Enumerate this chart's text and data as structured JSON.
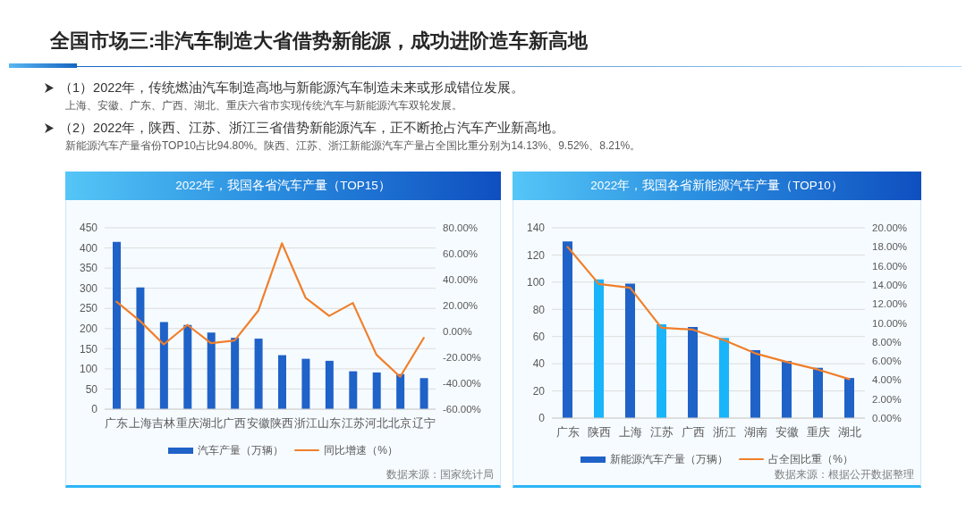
{
  "chart_data": [
    {
      "type": "other",
      "title": "全国市场三:非汽车制造大省借势新能源，成功进阶造车新高地",
      "annotations": [
        "（1）2022年，传统燃油汽车制造高地与新能源汽车制造未来或形成错位发展。",
        "上海、安徽、广东、广西、湖北、重庆六省市实现传统汽车与新能源汽车双轮发展。",
        "（2）2022年，陕西、江苏、浙江三省借势新能源汽车，正不断抢占汽车产业新高地。",
        "新能源汽车产量省份TOP10占比94.80%。陕西、江苏、浙江新能源汽车产量占全国比重分别为14.13%、9.52%、8.21%。"
      ]
    },
    {
      "type": "bar",
      "title": "2022年，我国各省汽车产量（TOP15）",
      "categories": [
        "广东",
        "上海",
        "吉林",
        "重庆",
        "湖北",
        "广西",
        "安徽",
        "陕西",
        "浙江",
        "山东",
        "江苏",
        "河北",
        "北京",
        "辽宁"
      ],
      "series": [
        {
          "name": "汽车产量（万辆）",
          "type": "bar",
          "color": "#1f62c8",
          "values": [
            415,
            302,
            216,
            209,
            190,
            177,
            175,
            134,
            125,
            120,
            94,
            91,
            87,
            77
          ]
        },
        {
          "name": "同比增速（%）",
          "type": "line",
          "axis": "y2",
          "color": "#f07f2b",
          "values": [
            23,
            8,
            -10,
            5,
            -9,
            -7,
            16,
            68,
            26,
            12,
            22,
            -18,
            -35,
            -5
          ]
        }
      ],
      "ylim": [
        0,
        450
      ],
      "yticks": [
        0,
        50,
        100,
        150,
        200,
        250,
        300,
        350,
        400,
        450
      ],
      "y2lim": [
        -60,
        80
      ],
      "y2ticks": [
        {
          "value": -60,
          "label": "-60.00%"
        },
        {
          "value": -40,
          "label": "-40.00%"
        },
        {
          "value": -20,
          "label": "-20.00%"
        },
        {
          "value": 0,
          "label": "0.00%"
        },
        {
          "value": 20,
          "label": "20.00%"
        },
        {
          "value": 40,
          "label": "40.00%"
        },
        {
          "value": 60,
          "label": "60.00%"
        },
        {
          "value": 80,
          "label": "80.00%"
        }
      ],
      "grid": "y",
      "legend": "bottom",
      "marker": "none",
      "line_style": "solid",
      "annotations": [
        "数据来源：国家统计局"
      ]
    },
    {
      "type": "bar",
      "title": "2022年，我国各省新能源汽车产量（TOP10）",
      "categories": [
        "广东",
        "陕西",
        "上海",
        "江苏",
        "广西",
        "浙江",
        "湖南",
        "安徽",
        "重庆",
        "湖北"
      ],
      "series": [
        {
          "name": "新能源汽车产量（万辆）",
          "type": "bar",
          "color": "#1f62c8",
          "colors": [
            "#1f62c8",
            "#1ab4fa",
            "#1f62c8",
            "#1ab4fa",
            "#1f62c8",
            "#1ab4fa",
            "#1f62c8",
            "#1f62c8",
            "#1f62c8",
            "#1f62c8"
          ],
          "values": [
            130,
            102,
            99,
            69,
            67,
            59,
            50,
            42,
            37,
            29.5
          ]
        },
        {
          "name": "占全国比重（%）",
          "type": "line",
          "axis": "y2",
          "color": "#f07f2b",
          "values": [
            18.0,
            14.1,
            13.7,
            9.5,
            9.3,
            8.2,
            6.8,
            5.9,
            5.1,
            4.1
          ]
        }
      ],
      "ylim": [
        0,
        140
      ],
      "yticks": [
        0,
        20,
        40,
        60,
        80,
        100,
        120,
        140
      ],
      "y2lim": [
        0,
        20
      ],
      "y2ticks": [
        {
          "value": 0,
          "label": "0.00%"
        },
        {
          "value": 2,
          "label": "2.00%"
        },
        {
          "value": 4,
          "label": "4.00%"
        },
        {
          "value": 6,
          "label": "6.00%"
        },
        {
          "value": 8,
          "label": "8.00%"
        },
        {
          "value": 10,
          "label": "10.00%"
        },
        {
          "value": 12,
          "label": "12.00%"
        },
        {
          "value": 14,
          "label": "14.00%"
        },
        {
          "value": 16,
          "label": "16.00%"
        },
        {
          "value": 18,
          "label": "18.00%"
        },
        {
          "value": 20,
          "label": "20.00%"
        }
      ],
      "grid": "y",
      "legend": "bottom",
      "marker": "none",
      "line_style": "solid",
      "annotations": [
        "数据来源：根据公开数据整理"
      ]
    }
  ]
}
